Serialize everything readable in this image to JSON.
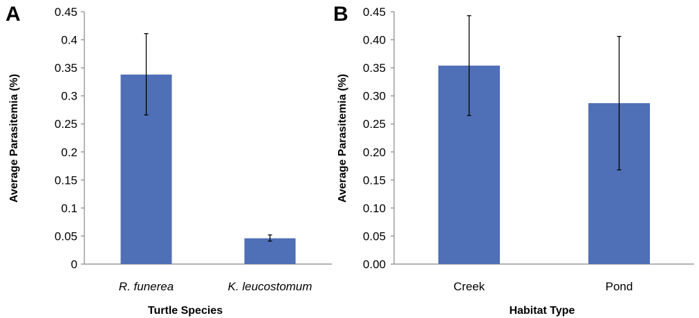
{
  "chart_data": [
    {
      "type": "bar",
      "panel_label": "A",
      "categories": [
        "R. funerea",
        "K. leucostomum"
      ],
      "categories_italic": true,
      "values": [
        0.338,
        0.046
      ],
      "error_low": [
        0.266,
        0.041
      ],
      "error_high": [
        0.411,
        0.052
      ],
      "ylim": [
        0,
        0.45
      ],
      "yticks": [
        0,
        0.05,
        0.1,
        0.15,
        0.2,
        0.25,
        0.3,
        0.35,
        0.4,
        0.45
      ],
      "ytick_labels": [
        "0",
        "0.05",
        "0.1",
        "0.15",
        "0.2",
        "0.25",
        "0.3",
        "0.35",
        "0.4",
        "0.45"
      ],
      "xlabel": "Turtle Species",
      "ylabel": "Average Parasitemia (%)",
      "grid": false,
      "bar_color": "#4f6fb6"
    },
    {
      "type": "bar",
      "panel_label": "B",
      "categories": [
        "Creek",
        "Pond"
      ],
      "categories_italic": false,
      "values": [
        0.354,
        0.287
      ],
      "error_low": [
        0.265,
        0.168
      ],
      "error_high": [
        0.443,
        0.406
      ],
      "ylim": [
        0,
        0.45
      ],
      "yticks": [
        0,
        0.05,
        0.1,
        0.15,
        0.2,
        0.25,
        0.3,
        0.35,
        0.4,
        0.45
      ],
      "ytick_labels": [
        "0.00",
        "0.05",
        "0.10",
        "0.15",
        "0.20",
        "0.25",
        "0.30",
        "0.35",
        "0.40",
        "0.45"
      ],
      "xlabel": "Habitat Type",
      "ylabel": "Average Parasitemia (%)",
      "grid": false,
      "bar_color": "#4f6fb6"
    }
  ]
}
